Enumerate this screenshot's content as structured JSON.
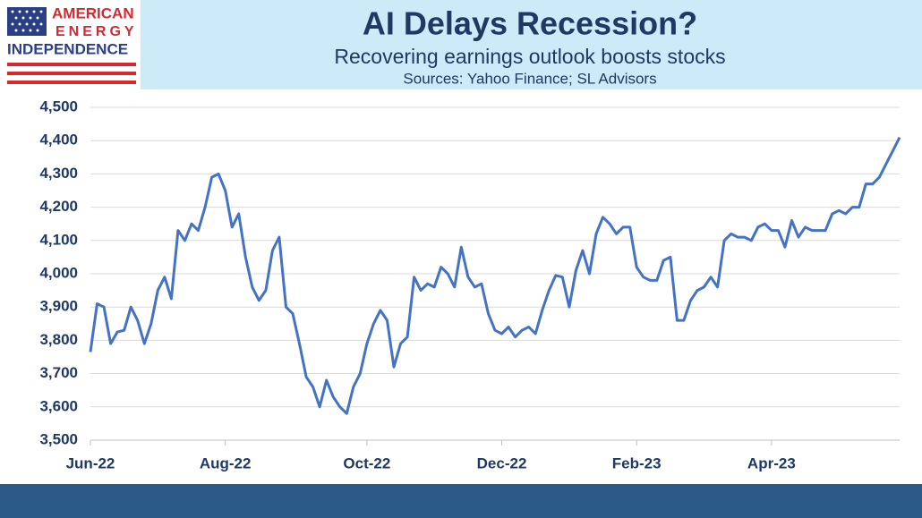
{
  "logo_text": [
    "AMERICAN",
    "ENERGY",
    "INDEPENDENCE"
  ],
  "chart_data": {
    "type": "line",
    "title": "AI Delays Recession?",
    "subtitle": "Recovering earnings outlook boosts stocks",
    "source": "Sources: Yahoo Finance; SL Advisors",
    "color": "#4472c4",
    "grid": true,
    "ylim": [
      3500,
      4500
    ],
    "yticks": [
      {
        "value": 3500,
        "label": "3,500"
      },
      {
        "value": 3600,
        "label": "3,600"
      },
      {
        "value": 3700,
        "label": "3,700"
      },
      {
        "value": 3800,
        "label": "3,800"
      },
      {
        "value": 3900,
        "label": "3,900"
      },
      {
        "value": 4000,
        "label": "4,000"
      },
      {
        "value": 4100,
        "label": "4,100"
      },
      {
        "value": 4200,
        "label": "4,200"
      },
      {
        "value": 4300,
        "label": "4,300"
      },
      {
        "value": 4400,
        "label": "4,400"
      },
      {
        "value": 4500,
        "label": "4,500"
      }
    ],
    "categories": [
      "Jun-22",
      null,
      null,
      null,
      null,
      null,
      null,
      null,
      null,
      null,
      null,
      null,
      null,
      null,
      null,
      null,
      null,
      null,
      null,
      null,
      "Aug-22",
      null,
      null,
      null,
      null,
      null,
      null,
      null,
      null,
      null,
      null,
      null,
      null,
      null,
      null,
      null,
      null,
      null,
      null,
      null,
      null,
      "Oct-22",
      null,
      null,
      null,
      null,
      null,
      null,
      null,
      null,
      null,
      null,
      null,
      null,
      null,
      null,
      null,
      null,
      null,
      null,
      null,
      "Dec-22",
      null,
      null,
      null,
      null,
      null,
      null,
      null,
      null,
      null,
      null,
      null,
      null,
      null,
      null,
      null,
      null,
      null,
      null,
      null,
      "Feb-23",
      null,
      null,
      null,
      null,
      null,
      null,
      null,
      null,
      null,
      null,
      null,
      null,
      null,
      null,
      null,
      null,
      null,
      null,
      null,
      "Apr-23",
      null,
      null,
      null,
      null,
      null,
      null,
      null,
      null,
      null,
      null,
      null,
      null,
      null,
      null,
      null,
      null,
      null,
      null,
      null
    ],
    "values": [
      3765,
      3910,
      3900,
      3790,
      3825,
      3830,
      3900,
      3860,
      3790,
      3850,
      3950,
      3990,
      3925,
      4130,
      4100,
      4150,
      4130,
      4200,
      4290,
      4300,
      4250,
      4140,
      4180,
      4050,
      3960,
      3920,
      3950,
      4070,
      4110,
      3900,
      3880,
      3790,
      3690,
      3660,
      3600,
      3680,
      3630,
      3600,
      3580,
      3660,
      3700,
      3790,
      3850,
      3890,
      3860,
      3720,
      3790,
      3810,
      3990,
      3950,
      3970,
      3960,
      4020,
      4000,
      3960,
      4080,
      3990,
      3960,
      3970,
      3880,
      3830,
      3820,
      3840,
      3810,
      3830,
      3840,
      3820,
      3890,
      3950,
      3995,
      3990,
      3900,
      4010,
      4070,
      4000,
      4120,
      4170,
      4150,
      4120,
      4140,
      4140,
      4020,
      3990,
      3980,
      3980,
      4040,
      4050,
      3860,
      3860,
      3920,
      3950,
      3960,
      3990,
      3960,
      4100,
      4120,
      4110,
      4110,
      4100,
      4140,
      4150,
      4130,
      4130,
      4080,
      4160,
      4110,
      4140,
      4130,
      4130,
      4130,
      4180,
      4190,
      4180,
      4200,
      4200,
      4270,
      4270,
      4290,
      4330,
      4370,
      4410
    ]
  }
}
